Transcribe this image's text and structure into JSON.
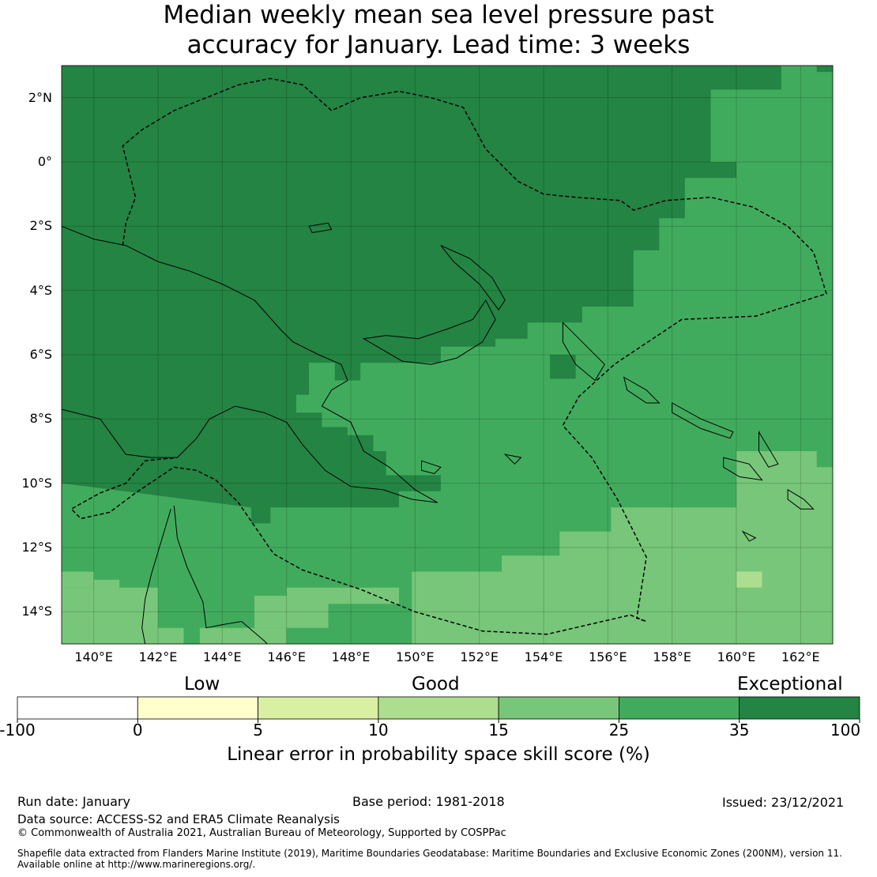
{
  "title": {
    "line1": "Median weekly mean sea level pressure past",
    "line2": "accuracy for January. Lead time: 3 weeks"
  },
  "map": {
    "lon_range": [
      139,
      163
    ],
    "lat_range": [
      -15,
      3
    ],
    "lat_ticks": [
      {
        "value": 2,
        "label": "2°N"
      },
      {
        "value": 0,
        "label": "0°"
      },
      {
        "value": -2,
        "label": "2°S"
      },
      {
        "value": -4,
        "label": "4°S"
      },
      {
        "value": -6,
        "label": "6°S"
      },
      {
        "value": -8,
        "label": "8°S"
      },
      {
        "value": -10,
        "label": "10°S"
      },
      {
        "value": -12,
        "label": "12°S"
      },
      {
        "value": -14,
        "label": "14°S"
      }
    ],
    "lon_ticks": [
      {
        "value": 140,
        "label": "140°E"
      },
      {
        "value": 142,
        "label": "142°E"
      },
      {
        "value": 144,
        "label": "144°E"
      },
      {
        "value": 146,
        "label": "146°E"
      },
      {
        "value": 148,
        "label": "148°E"
      },
      {
        "value": 150,
        "label": "150°E"
      },
      {
        "value": 152,
        "label": "152°E"
      },
      {
        "value": 154,
        "label": "154°E"
      },
      {
        "value": 156,
        "label": "156°E"
      },
      {
        "value": 158,
        "label": "158°E"
      },
      {
        "value": 160,
        "label": "160°E"
      },
      {
        "value": 162,
        "label": "162°E"
      }
    ]
  },
  "legend": {
    "categories": [
      {
        "label": "Low"
      },
      {
        "label": "Good"
      },
      {
        "label": "Exceptional"
      }
    ],
    "bins": [
      {
        "from": -100,
        "to": 0,
        "color": "#ffffff"
      },
      {
        "from": 0,
        "to": 5,
        "color": "#ffffcc"
      },
      {
        "from": 5,
        "to": 10,
        "color": "#d9f0a3"
      },
      {
        "from": 10,
        "to": 15,
        "color": "#addd8e"
      },
      {
        "from": 15,
        "to": 25,
        "color": "#78c679"
      },
      {
        "from": 25,
        "to": 35,
        "color": "#41ab5d"
      },
      {
        "from": 35,
        "to": 100,
        "color": "#238443"
      }
    ],
    "ticks": [
      "-100",
      "0",
      "5",
      "10",
      "15",
      "25",
      "35",
      "100"
    ],
    "axis_title": "Linear error in probability space skill score (%)"
  },
  "footer": {
    "run_date": "Run date: January",
    "base_period": "Base period: 1981-2018",
    "issued": "Issued: 23/12/2021",
    "data_source": "Data source: ACCESS-S2 and ERA5 Climate Reanalysis",
    "copyright": "© Commonwealth of Australia 2021, Australian Bureau of Meteorology, Supported by COSPPac",
    "shapefile1": "Shapefile data extracted from Flanders Marine Institute (2019), Maritime Boundaries Geodatabase: Maritime Boundaries and Exclusive Economic Zones (200NM), version 11.",
    "shapefile2": "Available online at http://www.marineregions.org/."
  }
}
